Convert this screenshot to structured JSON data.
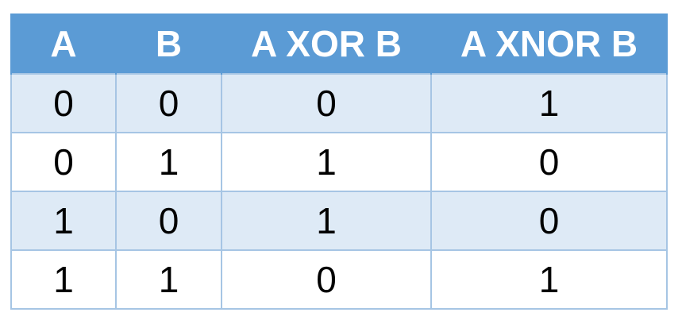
{
  "table": {
    "headers": [
      "A",
      "B",
      "A XOR B",
      "A XNOR B"
    ],
    "rows": [
      [
        "0",
        "0",
        "0",
        "1"
      ],
      [
        "0",
        "1",
        "1",
        "0"
      ],
      [
        "1",
        "0",
        "1",
        "0"
      ],
      [
        "1",
        "1",
        "0",
        "1"
      ]
    ]
  },
  "colors": {
    "header_bg": "#5b9bd5",
    "header_text": "#ffffff",
    "band_row_bg": "#deeaf6",
    "grid_line": "#a6c5e4"
  }
}
